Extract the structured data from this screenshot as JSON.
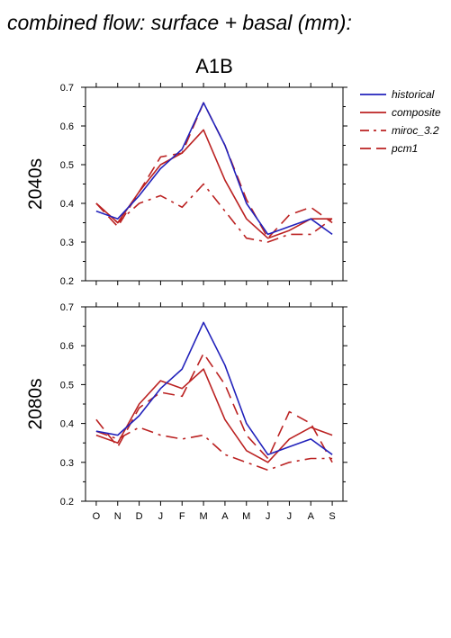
{
  "page_title": "combined flow: surface + basal (mm):",
  "colors": {
    "historical": "#2222bb",
    "composite": "#bb2222",
    "miroc_3.2": "#bb2222",
    "pcm1": "#bb2222"
  },
  "chart_data": [
    {
      "type": "line",
      "title": "A1B",
      "ylabel": "2040s",
      "xlabel": "",
      "categories": [
        "O",
        "N",
        "D",
        "J",
        "F",
        "M",
        "A",
        "M",
        "J",
        "J",
        "A",
        "S"
      ],
      "ylim": [
        0.2,
        0.7
      ],
      "yticks": [
        "0.2",
        "0.3",
        "0.4",
        "0.5",
        "0.6",
        "0.7"
      ],
      "grid": false,
      "legend": "right",
      "series": [
        {
          "name": "historical",
          "style": "solid",
          "color": "#2222bb",
          "values": [
            0.38,
            0.36,
            0.42,
            0.49,
            0.54,
            0.66,
            0.55,
            0.4,
            0.32,
            0.34,
            0.36,
            0.32
          ]
        },
        {
          "name": "composite",
          "style": "solid",
          "color": "#bb2222",
          "values": [
            0.4,
            0.35,
            0.43,
            0.5,
            0.53,
            0.59,
            0.46,
            0.36,
            0.31,
            0.33,
            0.36,
            0.36
          ]
        },
        {
          "name": "miroc_3.2",
          "style": "dashdot",
          "color": "#bb2222",
          "values": [
            0.4,
            0.35,
            0.4,
            0.42,
            0.39,
            0.45,
            0.38,
            0.31,
            0.3,
            0.32,
            0.32,
            0.36
          ]
        },
        {
          "name": "pcm1",
          "style": "dashed",
          "color": "#bb2222",
          "values": [
            0.4,
            0.34,
            0.43,
            0.52,
            0.53,
            0.66,
            0.55,
            0.41,
            0.31,
            0.37,
            0.39,
            0.35
          ]
        }
      ]
    },
    {
      "type": "line",
      "title": "",
      "ylabel": "2080s",
      "xlabel": "",
      "categories": [
        "O",
        "N",
        "D",
        "J",
        "F",
        "M",
        "A",
        "M",
        "J",
        "J",
        "A",
        "S"
      ],
      "ylim": [
        0.2,
        0.7
      ],
      "yticks": [
        "0.2",
        "0.3",
        "0.4",
        "0.5",
        "0.6",
        "0.7"
      ],
      "grid": false,
      "legend": "none",
      "series": [
        {
          "name": "historical",
          "style": "solid",
          "color": "#2222bb",
          "values": [
            0.38,
            0.37,
            0.42,
            0.49,
            0.54,
            0.66,
            0.55,
            0.4,
            0.32,
            0.34,
            0.36,
            0.32
          ]
        },
        {
          "name": "composite",
          "style": "solid",
          "color": "#bb2222",
          "values": [
            0.37,
            0.35,
            0.45,
            0.51,
            0.49,
            0.54,
            0.41,
            0.33,
            0.3,
            0.36,
            0.39,
            0.37
          ]
        },
        {
          "name": "miroc_3.2",
          "style": "dashdot",
          "color": "#bb2222",
          "values": [
            0.38,
            0.36,
            0.39,
            0.37,
            0.36,
            0.37,
            0.32,
            0.3,
            0.28,
            0.3,
            0.31,
            0.31
          ]
        },
        {
          "name": "pcm1",
          "style": "dashed",
          "color": "#bb2222",
          "values": [
            0.41,
            0.34,
            0.44,
            0.48,
            0.47,
            0.58,
            0.5,
            0.37,
            0.31,
            0.43,
            0.4,
            0.3
          ]
        }
      ]
    }
  ]
}
